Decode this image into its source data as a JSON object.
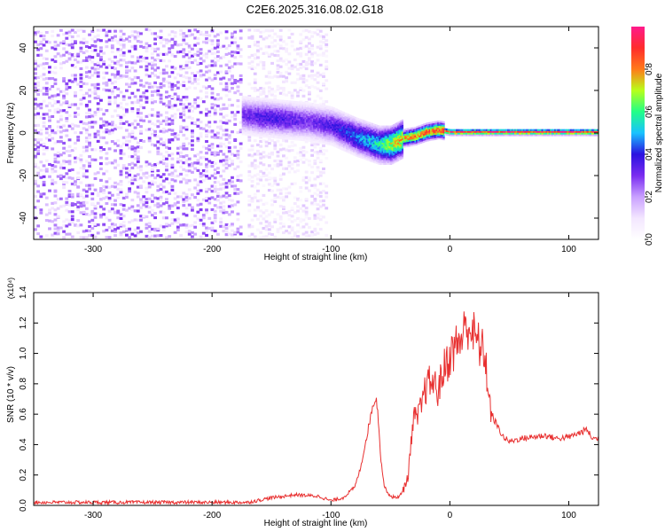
{
  "title": "C2E6.2025.316.08.02.G18",
  "colors": {
    "snr_line": "#e83030",
    "axis": "#000000",
    "background": "#ffffff",
    "colormap": [
      "#ffffff",
      "#f3e6ff",
      "#c9a0ff",
      "#7a2cf0",
      "#2a12e0",
      "#19c2ff",
      "#22ff86",
      "#b8ff1a",
      "#ff7a1a",
      "#ff2c2c",
      "#ff1a8c"
    ]
  },
  "chart_data": [
    {
      "type": "heatmap",
      "name": "spectrogram",
      "xlabel": "Height of straight line (km)",
      "ylabel": "Frequency (Hz)",
      "xlim": [
        -350,
        125
      ],
      "ylim": [
        -50,
        50
      ],
      "x_ticks": [
        -300,
        -200,
        -100,
        0,
        100
      ],
      "y_ticks": [
        -40,
        -20,
        0,
        20,
        40
      ],
      "colorbar": {
        "label": "Normalized spectral amplitude",
        "range": [
          0.0,
          1.0
        ],
        "ticks": [
          "0.0",
          "0.2",
          "0.4",
          "0.6",
          "0.8"
        ]
      },
      "regions": [
        {
          "desc": "noise",
          "x_range": [
            -350,
            -175
          ],
          "freq_range": [
            -50,
            48
          ],
          "amplitude": 0.2
        },
        {
          "desc": "noise",
          "x_range": [
            -170,
            -105
          ],
          "freq_range": [
            -50,
            48
          ],
          "amplitude": 0.1
        },
        {
          "desc": "signal",
          "x": [
            -175,
            -160,
            -140,
            -120,
            -100,
            -80,
            -60,
            -50,
            -40,
            -30,
            -20,
            -10,
            0,
            25,
            50,
            75,
            100,
            125
          ],
          "freq": [
            8,
            7,
            6,
            5,
            3,
            -2,
            -6,
            -6,
            -3,
            -2,
            0,
            1,
            0,
            0,
            0,
            0,
            0,
            0
          ],
          "amplitude": [
            0.3,
            0.35,
            0.35,
            0.3,
            0.35,
            0.45,
            0.55,
            0.7,
            0.75,
            0.8,
            0.85,
            0.85,
            0.9,
            0.9,
            0.9,
            0.9,
            0.9,
            0.9
          ]
        }
      ]
    },
    {
      "type": "line",
      "name": "snr",
      "xlabel": "Height of straight line (km)",
      "ylabel": "SNR (10 * v/v)",
      "y_multiplier": "(x10⁴)",
      "xlim": [
        -350,
        125
      ],
      "ylim": [
        0,
        1.4
      ],
      "x_ticks": [
        -300,
        -200,
        -100,
        0,
        100
      ],
      "y_ticks": [
        "0.0",
        "0.2",
        "0.4",
        "0.6",
        "0.8",
        "1.0",
        "1.2",
        "1.4"
      ],
      "series": [
        {
          "x": [
            -350,
            -200,
            -170,
            -150,
            -130,
            -110,
            -100,
            -90,
            -80,
            -75,
            -70,
            -65,
            -62,
            -60,
            -58,
            -55,
            -50,
            -45,
            -40,
            -35,
            -32,
            -30,
            -28,
            -25,
            -20,
            -15,
            -10,
            -5,
            0,
            5,
            10,
            15,
            20,
            25,
            30,
            32,
            35,
            40,
            45,
            50,
            60,
            70,
            80,
            90,
            100,
            110,
            115,
            120,
            125
          ],
          "y": [
            0.02,
            0.02,
            0.02,
            0.05,
            0.07,
            0.06,
            0.03,
            0.05,
            0.12,
            0.25,
            0.45,
            0.65,
            0.72,
            0.55,
            0.3,
            0.12,
            0.06,
            0.05,
            0.08,
            0.2,
            0.48,
            0.58,
            0.56,
            0.62,
            0.78,
            0.82,
            0.75,
            0.9,
            0.98,
            1.05,
            1.1,
            1.2,
            1.12,
            1.05,
            0.98,
            0.75,
            0.6,
            0.52,
            0.45,
            0.42,
            0.44,
            0.45,
            0.46,
            0.44,
            0.45,
            0.48,
            0.5,
            0.44,
            0.44
          ]
        }
      ]
    }
  ]
}
